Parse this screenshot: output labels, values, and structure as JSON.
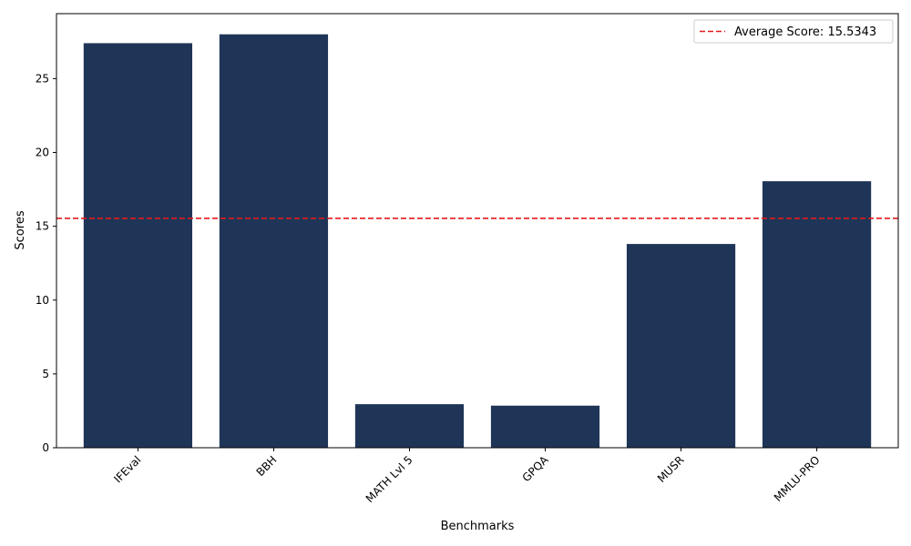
{
  "chart_data": {
    "type": "bar",
    "categories": [
      "IFEval",
      "BBH",
      "MATH Lvl 5",
      "GPQA",
      "MUSR",
      "MMLU-PRO"
    ],
    "values": [
      27.4,
      28.0,
      2.95,
      2.85,
      13.8,
      18.05
    ],
    "xlabel": "Benchmarks",
    "ylabel": "Scores",
    "ylim": [
      0,
      29.4
    ],
    "yticks": [
      0,
      5,
      10,
      15,
      20,
      25
    ],
    "bar_color": "#1f3557",
    "reference_line": {
      "value": 15.5343,
      "label": "Average Score: 15.5343",
      "color": "#e41a1c",
      "style": "dashed"
    },
    "legend": {
      "position": "top-right"
    },
    "grid": false
  }
}
